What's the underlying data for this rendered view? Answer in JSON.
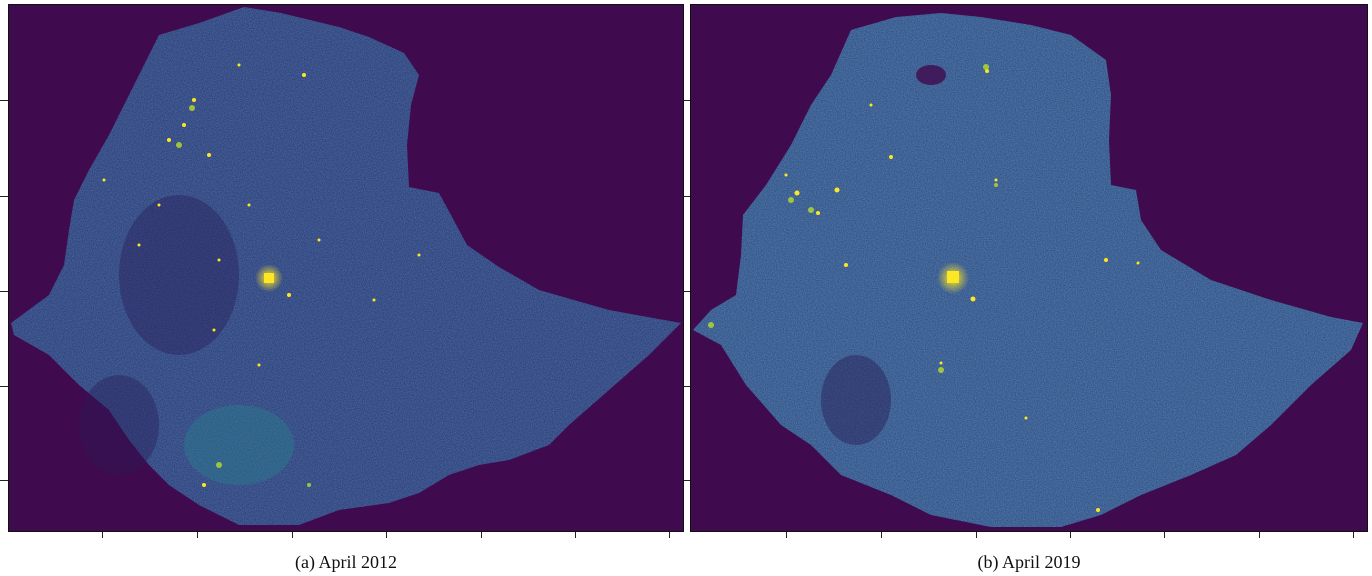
{
  "figure": {
    "panels": [
      {
        "caption": "(a) April 2012"
      },
      {
        "caption": "(b) April 2019"
      }
    ],
    "colors": {
      "background": "#400a4e",
      "land_low": "#2d3d7a",
      "land_mid": "#335f8b",
      "land_high": "#23978a",
      "bright": "#fde725",
      "yellow_green": "#b8de29"
    }
  }
}
